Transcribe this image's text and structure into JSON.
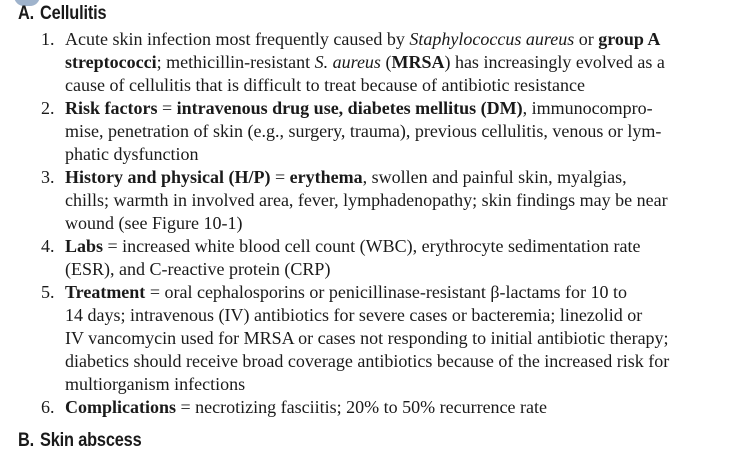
{
  "section_a": {
    "letter": "A.",
    "title": "Cellulitis"
  },
  "items": [
    {
      "number": "1.",
      "lines": [
        [
          {
            "t": "Acute skin infection most frequently caused by "
          },
          {
            "t": "Staphylococcus aureus",
            "s": "i"
          },
          {
            "t": " or "
          },
          {
            "t": "group A",
            "s": "b"
          }
        ],
        [
          {
            "t": "streptococci",
            "s": "b"
          },
          {
            "t": "; methicillin-resistant "
          },
          {
            "t": "S. aureus",
            "s": "i"
          },
          {
            "t": " ("
          },
          {
            "t": "MRSA",
            "s": "b"
          },
          {
            "t": ") has increasingly evolved as a"
          }
        ],
        [
          {
            "t": "cause of cellulitis that is difficult to treat because of antibiotic resistance"
          }
        ]
      ]
    },
    {
      "number": "2.",
      "lines": [
        [
          {
            "t": "Risk factors",
            "s": "b"
          },
          {
            "t": " = "
          },
          {
            "t": "intravenous drug use, diabetes mellitus (DM)",
            "s": "b"
          },
          {
            "t": ", immunocompro-"
          }
        ],
        [
          {
            "t": "mise, penetration of skin (e.g., surgery, trauma), previous cellulitis, venous or lym-"
          }
        ],
        [
          {
            "t": "phatic dysfunction"
          }
        ]
      ]
    },
    {
      "number": "3.",
      "lines": [
        [
          {
            "t": "History and physical (H/P)",
            "s": "b"
          },
          {
            "t": " = "
          },
          {
            "t": "erythema",
            "s": "b"
          },
          {
            "t": ", swollen and painful skin, myalgias,"
          }
        ],
        [
          {
            "t": "chills; warmth in involved area, fever, lymphadenopathy; skin findings may be near"
          }
        ],
        [
          {
            "t": "wound (see Figure 10-1)"
          }
        ]
      ]
    },
    {
      "number": "4.",
      "lines": [
        [
          {
            "t": "Labs",
            "s": "b"
          },
          {
            "t": " = increased white blood cell count (WBC), erythrocyte sedimentation rate"
          }
        ],
        [
          {
            "t": "(ESR), and C-reactive protein (CRP)"
          }
        ]
      ]
    },
    {
      "number": "5.",
      "lines": [
        [
          {
            "t": "Treatment",
            "s": "b"
          },
          {
            "t": " = oral cephalosporins or penicillinase-resistant β-lactams for 10 to"
          }
        ],
        [
          {
            "t": "14 days; intravenous (IV) antibiotics for severe cases or bacteremia; linezolid or"
          }
        ],
        [
          {
            "t": "IV vancomycin used for MRSA or cases not responding to initial antibiotic therapy;"
          }
        ],
        [
          {
            "t": "diabetics should receive broad coverage antibiotics because of the increased risk for"
          }
        ],
        [
          {
            "t": "multiorganism infections"
          }
        ]
      ]
    },
    {
      "number": "6.",
      "lines": [
        [
          {
            "t": "Complications",
            "s": "b"
          },
          {
            "t": " = necrotizing fasciitis; 20% to 50% recurrence rate"
          }
        ]
      ]
    }
  ],
  "section_b": {
    "letter": "B.",
    "title": "Skin abscess"
  }
}
